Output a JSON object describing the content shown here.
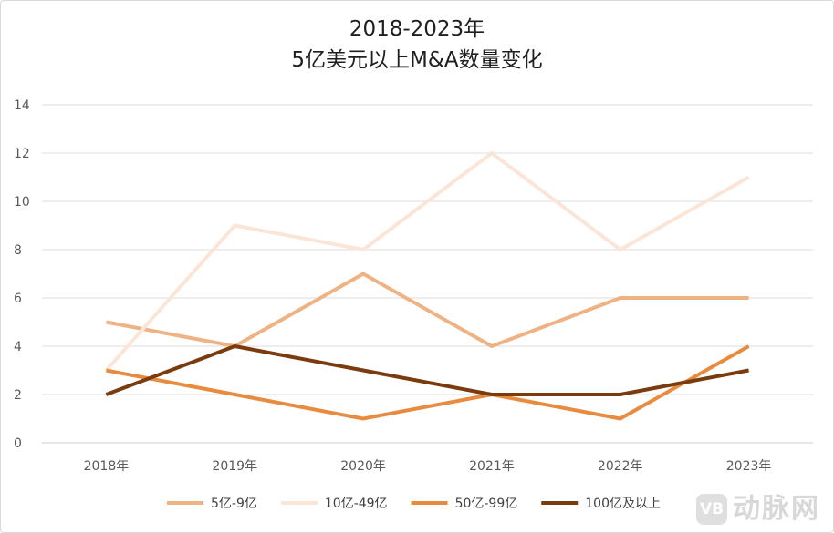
{
  "chart_data": {
    "type": "line",
    "title_lines": [
      "2018-2023年",
      "5亿美元以上M&A数量变化"
    ],
    "categories": [
      "2018年",
      "2019年",
      "2020年",
      "2021年",
      "2022年",
      "2023年"
    ],
    "series": [
      {
        "name": "5亿-9亿",
        "values": [
          5,
          4,
          7,
          4,
          6,
          6
        ],
        "color": "#efb283"
      },
      {
        "name": "10亿-49亿",
        "values": [
          3,
          9,
          8,
          12,
          8,
          11
        ],
        "color": "#fbe5d6"
      },
      {
        "name": "50亿-99亿",
        "values": [
          3,
          2,
          1,
          2,
          1,
          4
        ],
        "color": "#e88b3f"
      },
      {
        "name": "100亿及以上",
        "values": [
          2,
          4,
          3,
          2,
          2,
          3
        ],
        "color": "#7a3b0f"
      }
    ],
    "y_ticks": [
      0,
      2,
      4,
      6,
      8,
      10,
      12,
      14
    ],
    "ylim": [
      0,
      14
    ],
    "grid": true,
    "legend_position": "bottom"
  },
  "watermark": {
    "badge_text": "VB",
    "brand_text": "动脉网"
  }
}
